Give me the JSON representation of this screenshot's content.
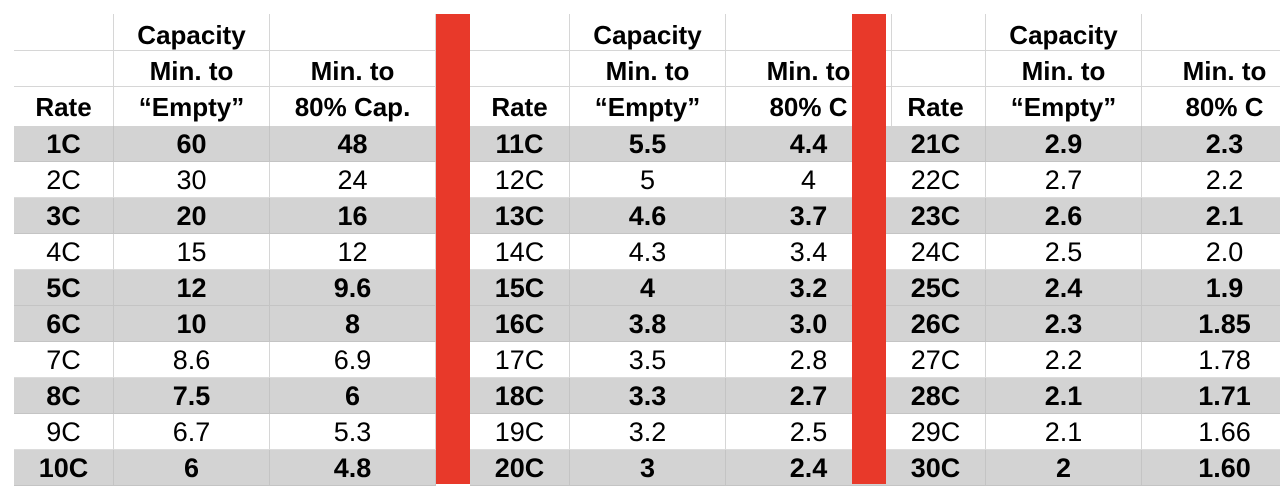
{
  "accent_color": "#e8392a",
  "shade_color": "#d3d3d3",
  "groups": [
    {
      "headers": [
        [
          "",
          "",
          "Rate"
        ],
        [
          "Capacity",
          "Min. to",
          "“Empty”"
        ],
        [
          "",
          "Min. to",
          "80% Cap."
        ]
      ],
      "rows": [
        [
          "1C",
          "60",
          "48"
        ],
        [
          "2C",
          "30",
          "24"
        ],
        [
          "3C",
          "20",
          "16"
        ],
        [
          "4C",
          "15",
          "12"
        ],
        [
          "5C",
          "12",
          "9.6"
        ],
        [
          "6C",
          "10",
          "8"
        ],
        [
          "7C",
          "8.6",
          "6.9"
        ],
        [
          "8C",
          "7.5",
          "6"
        ],
        [
          "9C",
          "6.7",
          "5.3"
        ],
        [
          "10C",
          "6",
          "4.8"
        ]
      ]
    },
    {
      "headers": [
        [
          "",
          "",
          "Rate"
        ],
        [
          "Capacity",
          "Min. to",
          "“Empty”"
        ],
        [
          "",
          "Min. to",
          "80% C"
        ]
      ],
      "rows": [
        [
          "11C",
          "5.5",
          "4.4"
        ],
        [
          "12C",
          "5",
          "4"
        ],
        [
          "13C",
          "4.6",
          "3.7"
        ],
        [
          "14C",
          "4.3",
          "3.4"
        ],
        [
          "15C",
          "4",
          "3.2"
        ],
        [
          "16C",
          "3.8",
          "3.0"
        ],
        [
          "17C",
          "3.5",
          "2.8"
        ],
        [
          "18C",
          "3.3",
          "2.7"
        ],
        [
          "19C",
          "3.2",
          "2.5"
        ],
        [
          "20C",
          "3",
          "2.4"
        ]
      ]
    },
    {
      "headers": [
        [
          "",
          "",
          "Rate"
        ],
        [
          "Capacity",
          "Min. to",
          "“Empty”"
        ],
        [
          "",
          "Min. to",
          "80% C"
        ]
      ],
      "rows": [
        [
          "21C",
          "2.9",
          "2.3"
        ],
        [
          "22C",
          "2.7",
          "2.2"
        ],
        [
          "23C",
          "2.6",
          "2.1"
        ],
        [
          "24C",
          "2.5",
          "2.0"
        ],
        [
          "25C",
          "2.4",
          "1.9"
        ],
        [
          "26C",
          "2.3",
          "1.85"
        ],
        [
          "27C",
          "2.2",
          "1.78"
        ],
        [
          "28C",
          "2.1",
          "1.71"
        ],
        [
          "29C",
          "2.1",
          "1.66"
        ],
        [
          "30C",
          "2",
          "1.60"
        ]
      ]
    }
  ],
  "shaded_rows": [
    0,
    2,
    4,
    5,
    7,
    9
  ]
}
